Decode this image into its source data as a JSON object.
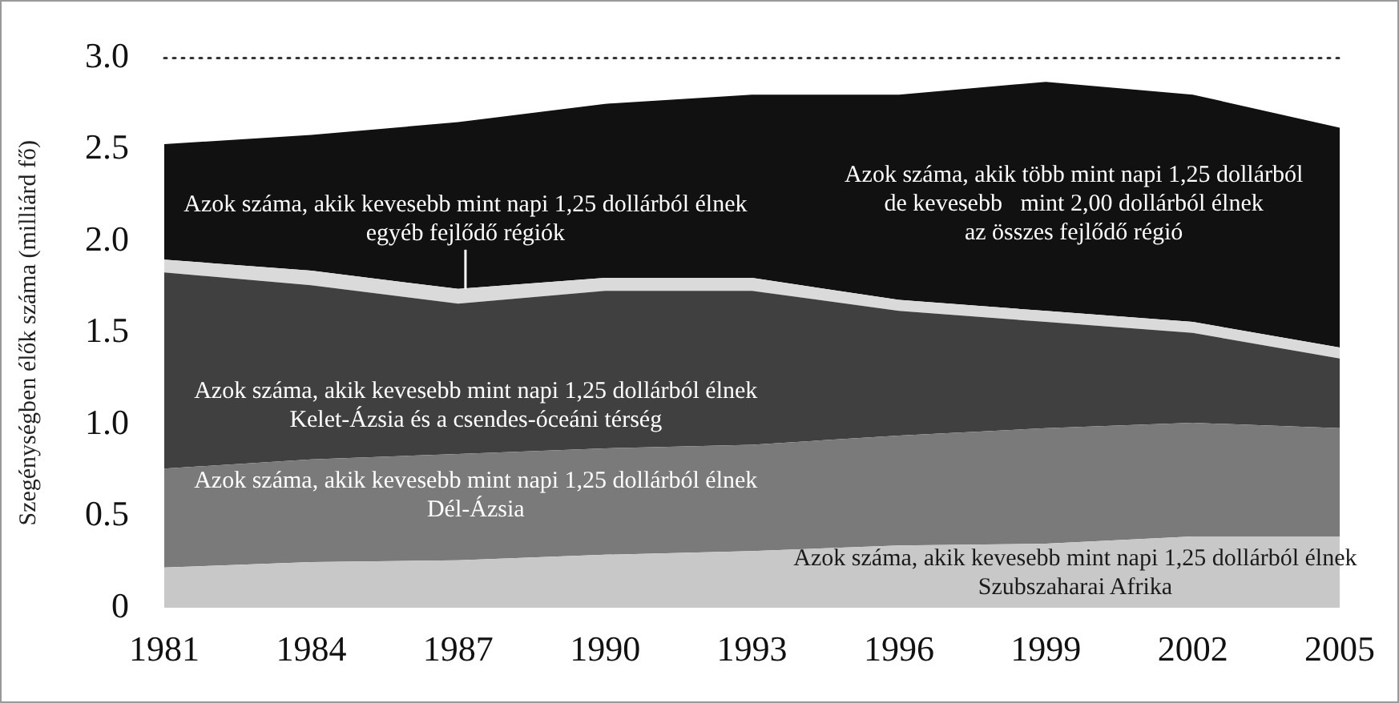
{
  "chart_data": {
    "type": "area",
    "stacked": true,
    "ylabel": "Szegénységben élők száma (milliárd fő)",
    "categories": [
      "1981",
      "1984",
      "1987",
      "1990",
      "1993",
      "1996",
      "1999",
      "2002",
      "2005"
    ],
    "ylim": [
      0,
      3
    ],
    "yticks": [
      0,
      0.5,
      {
        "value": 1,
        "label": "1.0"
      },
      1.5,
      {
        "value": 2,
        "label": "2.0"
      },
      2.5,
      {
        "value": 3,
        "label": "3.0"
      }
    ],
    "grid": false,
    "legend": false,
    "ref_lines": [
      {
        "axis": "y",
        "value": 3,
        "color": "#333333",
        "line_style": "dotted"
      }
    ],
    "series": [
      {
        "name": "Azok száma, akik kevesebb mint napi 1,25 dollárból élnek\nSzubszaharai Afrika",
        "color": "#c8c8c8",
        "values": [
          0.22,
          0.25,
          0.26,
          0.29,
          0.31,
          0.34,
          0.35,
          0.39,
          0.39
        ]
      },
      {
        "name": "Azok száma, akik kevesebb mint napi 1,25 dollárból élnek\nDél-Ázsia",
        "color": "#7a7a7a",
        "values": [
          0.54,
          0.56,
          0.58,
          0.58,
          0.58,
          0.6,
          0.63,
          0.62,
          0.59
        ]
      },
      {
        "name": "Azok száma, akik kevesebb mint napi 1,25 dollárból élnek\nKelet-Ázsia és a csendes-óceáni térség",
        "color": "#404040",
        "values": [
          1.07,
          0.95,
          0.82,
          0.86,
          0.84,
          0.68,
          0.58,
          0.49,
          0.38
        ]
      },
      {
        "name": "Azok száma, akik kevesebb mint napi 1,25 dollárból élnek\negyéb fejlődő régiók",
        "color": "#dadada",
        "values": [
          0.07,
          0.08,
          0.08,
          0.07,
          0.07,
          0.06,
          0.06,
          0.06,
          0.06
        ]
      },
      {
        "name": "Azok száma, akik több mint napi 1,25 dollárból\nde kevesebb   mint 2,00 dollárból élnek\naz összes fejlődő régió",
        "color": "#111111",
        "values": [
          0.63,
          0.74,
          0.91,
          0.95,
          1.0,
          1.12,
          1.25,
          1.24,
          1.2
        ]
      }
    ]
  }
}
